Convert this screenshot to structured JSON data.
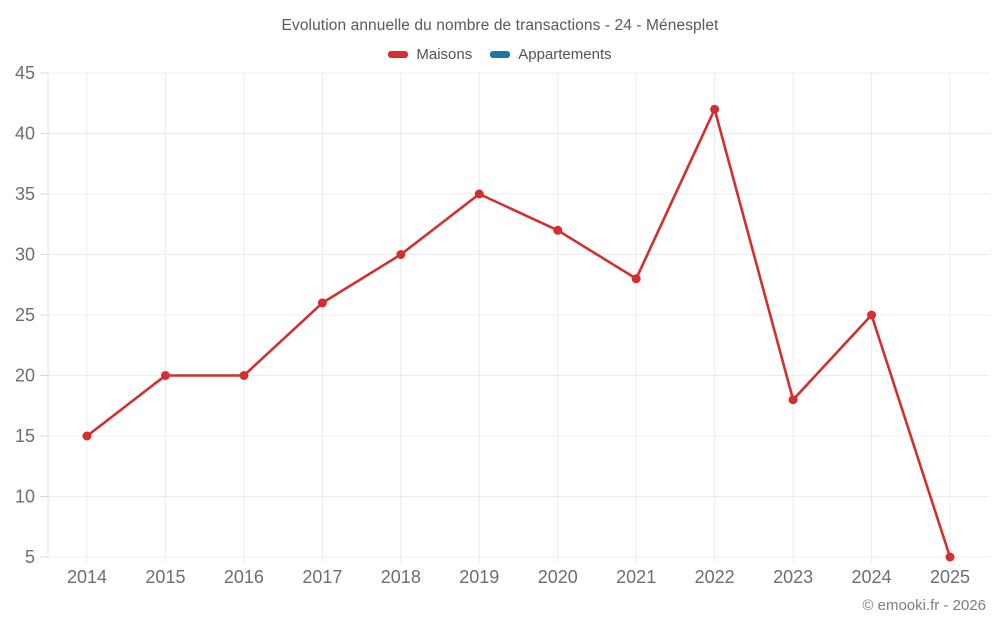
{
  "chart": {
    "title": "Evolution annuelle du nombre de transactions - 24 - Ménesplet",
    "footer": "© emooki.fr - 2026"
  },
  "colors": {
    "maisons": "#d32f2f",
    "appartements": "#1c74a8",
    "grid": "#ececec",
    "axis_border": "#e2e2e2",
    "tick": "#d9d9d9",
    "axis_text": "#6e6e6e"
  },
  "chart_data": {
    "type": "line",
    "title": "Evolution annuelle du nombre de transactions - 24 - Ménesplet",
    "categories": [
      "2014",
      "2015",
      "2016",
      "2017",
      "2018",
      "2019",
      "2020",
      "2021",
      "2022",
      "2023",
      "2024",
      "2025"
    ],
    "series": [
      {
        "name": "Maisons",
        "color": "#d32f2f",
        "values": [
          15,
          20,
          20,
          26,
          30,
          35,
          32,
          28,
          42,
          18,
          25,
          5
        ]
      },
      {
        "name": "Appartements",
        "color": "#1c74a8",
        "values": []
      }
    ],
    "xlabel": "",
    "ylabel": "",
    "ylim": [
      5,
      45
    ],
    "ytick_step": 5,
    "yticks": [
      5,
      10,
      15,
      20,
      25,
      30,
      35,
      40,
      45
    ],
    "grid": true,
    "legend_position": "top",
    "annotations": [
      "© emooki.fr - 2026"
    ]
  }
}
